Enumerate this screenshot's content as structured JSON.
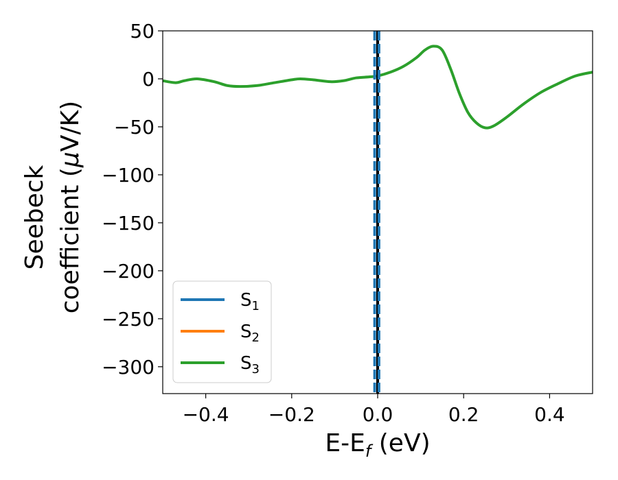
{
  "chart_data": {
    "type": "line",
    "xlabel": {
      "main": "E-E",
      "sub": "f",
      "unit": " (eV)"
    },
    "ylabel": {
      "line1": "Seebeck",
      "line2_prefix": "coefficient  (",
      "mu": "μ",
      "line2_suffix": "V/K)"
    },
    "xlim": [
      -0.5,
      0.5
    ],
    "ylim": [
      -328,
      50
    ],
    "xticks": [
      -0.4,
      -0.2,
      0.0,
      0.2,
      0.4
    ],
    "xtick_labels": [
      "−0.4",
      "−0.2",
      "0.0",
      "0.2",
      "0.4"
    ],
    "yticks": [
      50,
      0,
      -50,
      -100,
      -150,
      -200,
      -250,
      -300
    ],
    "ytick_labels": [
      "50",
      "0",
      "−50",
      "−100",
      "−150",
      "−200",
      "−250",
      "−300"
    ],
    "grid": false,
    "legend_position": "lower-left",
    "series": [
      {
        "name": "S",
        "sub": "1",
        "color": "#1f77b4",
        "x": [],
        "y": []
      },
      {
        "name": "S",
        "sub": "2",
        "color": "#ff7f0e",
        "x": [],
        "y": []
      },
      {
        "name": "S",
        "sub": "3",
        "color": "#2ca02c",
        "x": [
          -0.5,
          -0.47,
          -0.45,
          -0.42,
          -0.38,
          -0.35,
          -0.32,
          -0.28,
          -0.24,
          -0.2,
          -0.18,
          -0.15,
          -0.11,
          -0.08,
          -0.05,
          -0.02,
          0.0,
          0.03,
          0.06,
          0.09,
          0.11,
          0.13,
          0.15,
          0.17,
          0.19,
          0.21,
          0.23,
          0.25,
          0.27,
          0.3,
          0.34,
          0.38,
          0.42,
          0.46,
          0.5
        ],
        "y": [
          -2,
          -4,
          -2,
          0,
          -3,
          -7,
          -8,
          -7,
          -4,
          -1,
          0,
          -1,
          -3,
          -2,
          1,
          2,
          3,
          7,
          13,
          22,
          30,
          34,
          30,
          10,
          -15,
          -35,
          -46,
          -51,
          -49,
          -40,
          -26,
          -14,
          -5,
          3,
          7
        ]
      }
    ],
    "vlines": [
      {
        "x": 0.0,
        "style": "solid",
        "color": "#000000"
      },
      {
        "x": -0.007,
        "style": "dashed",
        "color": "#1f77b4"
      },
      {
        "x": 0.003,
        "style": "dashed",
        "color": "#1f77b4"
      }
    ]
  }
}
